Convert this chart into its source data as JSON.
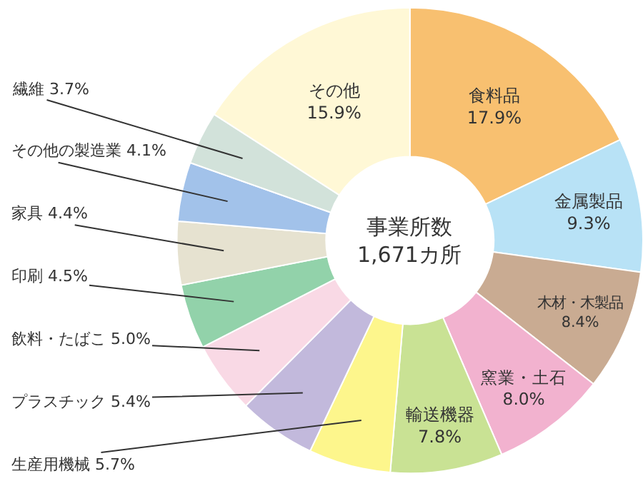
{
  "chart_data": {
    "type": "donut",
    "categories": [
      "食料品",
      "金属製品",
      "木材・木製品",
      "窯業・土石",
      "輸送機器",
      "生産用機械",
      "プラスチック",
      "飲料・たばこ",
      "印刷",
      "家具",
      "その他の製造業",
      "繊維",
      "その他"
    ],
    "values": [
      17.9,
      9.3,
      8.4,
      8.0,
      7.8,
      5.7,
      5.4,
      5.0,
      4.5,
      4.4,
      4.1,
      3.7,
      15.9
    ],
    "value_labels": [
      "17.9%",
      "9.3%",
      "8.4%",
      "8.0%",
      "7.8%",
      "5.7%",
      "5.4%",
      "5.0%",
      "4.5%",
      "4.4%",
      "4.1%",
      "3.7%",
      "15.9%"
    ],
    "colors": [
      "#f8c070",
      "#b8e2f6",
      "#c9ab92",
      "#f2b2cf",
      "#c9e294",
      "#fdf68c",
      "#c2b9dc",
      "#f9d9e5",
      "#92d2aa",
      "#e6e2d0",
      "#a2c2ea",
      "#d2e2da",
      "#fff8d6"
    ],
    "annotations": [
      "事業所数\n1,671カ所"
    ],
    "legend": false
  }
}
